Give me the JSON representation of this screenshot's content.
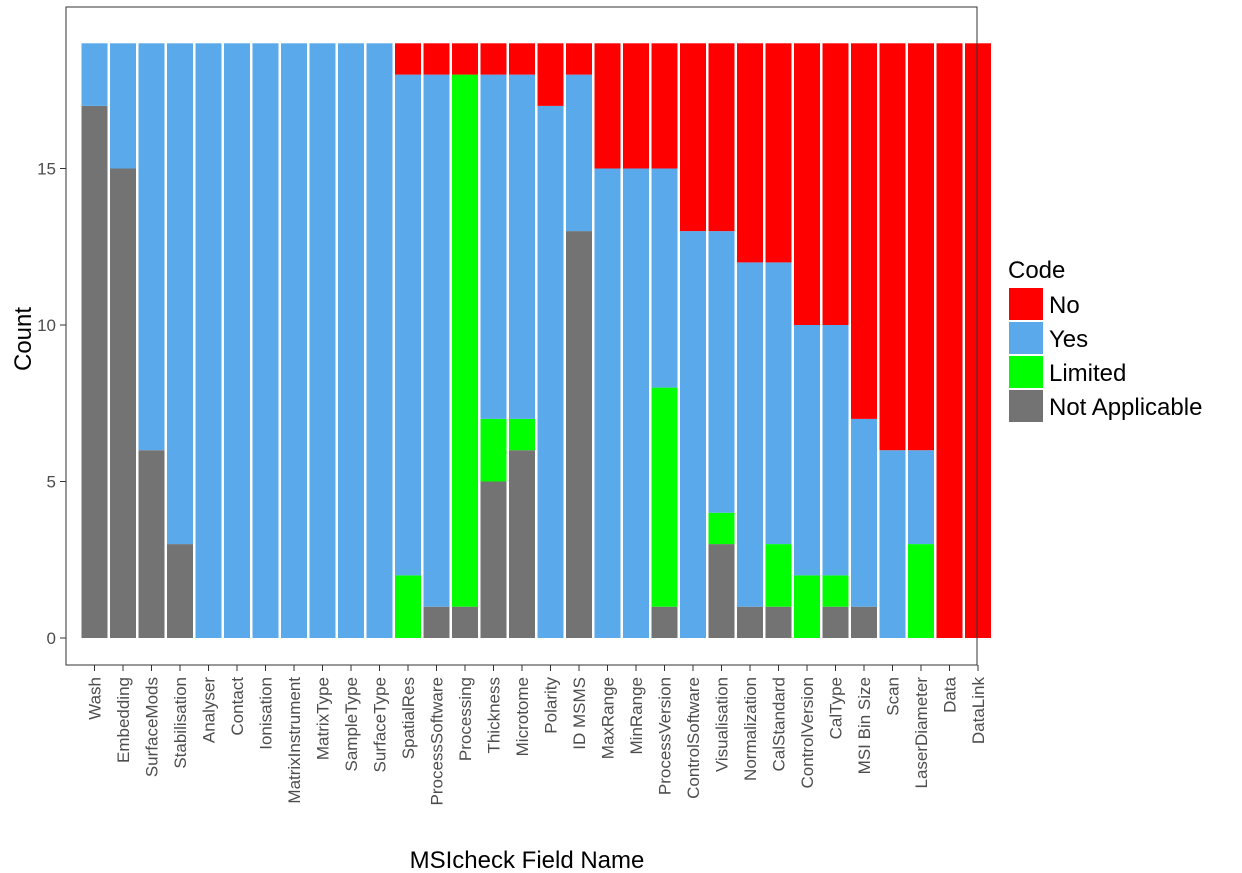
{
  "chart_data": {
    "type": "bar",
    "stacked": true,
    "xlabel": "MSIcheck Field Name",
    "ylabel": "Count",
    "ylim": [
      0,
      19
    ],
    "yticks": [
      0,
      5,
      10,
      15
    ],
    "grid": false,
    "legend": {
      "title": "Code",
      "position": "right"
    },
    "categories": [
      "Wash",
      "Embedding",
      "SurfaceMods",
      "Stabilisation",
      "Analyser",
      "Contact",
      "Ionisation",
      "MatrixInstrument",
      "MatrixType",
      "SampleType",
      "SurfaceType",
      "SpatialRes",
      "ProcessSoftware",
      "Processing",
      "Thickness",
      "Microtome",
      "Polarity",
      "ID MSMS",
      "MaxRange",
      "MinRange",
      "ProcessVersion",
      "ControlSoftware",
      "Visualisation",
      "Normalization",
      "CalStandard",
      "ControlVersion",
      "CalType",
      "MSI Bin Size",
      "Scan",
      "LaserDiameter",
      "Data",
      "DataLink"
    ],
    "series": [
      {
        "name": "Not Applicable",
        "color": "#737373",
        "values": [
          17,
          15,
          6,
          3,
          0,
          0,
          0,
          0,
          0,
          0,
          0,
          0,
          1,
          1,
          5,
          6,
          0,
          13,
          0,
          0,
          1,
          0,
          3,
          1,
          1,
          0,
          1,
          1,
          0,
          0,
          0,
          0
        ]
      },
      {
        "name": "Limited",
        "color": "#00ff00",
        "values": [
          0,
          0,
          0,
          0,
          0,
          0,
          0,
          0,
          0,
          0,
          0,
          2,
          0,
          17,
          2,
          1,
          0,
          0,
          0,
          0,
          7,
          0,
          1,
          0,
          2,
          2,
          1,
          0,
          0,
          3,
          0,
          0
        ]
      },
      {
        "name": "Yes",
        "color": "#5aaaeb",
        "values": [
          2,
          4,
          13,
          16,
          19,
          19,
          19,
          19,
          19,
          19,
          19,
          16,
          17,
          0,
          11,
          11,
          17,
          5,
          15,
          15,
          7,
          13,
          9,
          11,
          9,
          8,
          8,
          6,
          6,
          3,
          0,
          0
        ]
      },
      {
        "name": "No",
        "color": "#ff0000",
        "values": [
          0,
          0,
          0,
          0,
          0,
          0,
          0,
          0,
          0,
          0,
          0,
          1,
          1,
          1,
          1,
          1,
          2,
          1,
          4,
          4,
          4,
          6,
          6,
          7,
          7,
          9,
          9,
          12,
          13,
          13,
          19,
          19
        ]
      }
    ],
    "legend_order": [
      "No",
      "Yes",
      "Limited",
      "Not Applicable"
    ]
  }
}
